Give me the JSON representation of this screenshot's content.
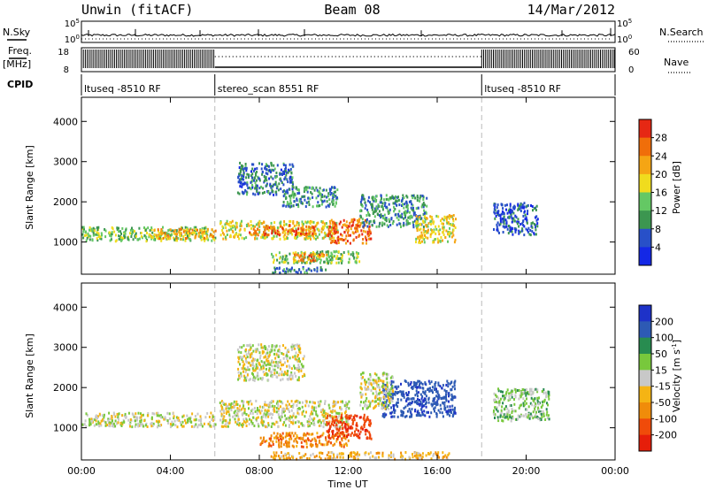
{
  "header": {
    "station": "Unwin (fitACF)",
    "beam": "Beam 08",
    "date": "14/Mar/2012"
  },
  "top_panels": {
    "nsky_label": "N.Sky",
    "nsearch_label": "N.Search",
    "noise_ticks_left": [
      "10^5",
      "10^0"
    ],
    "noise_ticks_right": [
      "10^5",
      "10^0"
    ],
    "freq_label_1": "Freq.",
    "freq_label_2": "[MHz]",
    "freq_ticks": [
      "18",
      "8"
    ],
    "nave_label": "Nave",
    "nave_ticks": [
      "60",
      "0"
    ],
    "cpid_label": "CPID",
    "cpid_segments": [
      {
        "name": "ltuseq -8510 RF",
        "start_hour": 0,
        "end_hour": 6
      },
      {
        "name": "stereo_scan 8551 RF",
        "start_hour": 6,
        "end_hour": 18
      },
      {
        "name": "ltuseq -8510 RF",
        "start_hour": 18,
        "end_hour": 24
      }
    ]
  },
  "chart_data": [
    {
      "type": "heatmap",
      "panel": "power",
      "ylabel": "Slant Range [km]",
      "xlabel": "",
      "ylim": [
        200,
        4600
      ],
      "y_ticks": [
        1000,
        2000,
        3000,
        4000
      ],
      "xlim": [
        0,
        24
      ],
      "x_ticks": [
        0,
        4,
        8,
        12,
        16,
        20,
        24
      ],
      "colorbar_label": "Power [dB]",
      "colorbar_ticks": [
        4,
        8,
        12,
        16,
        20,
        24,
        28
      ],
      "colorbar_colors": [
        "#1428e6",
        "#2850c8",
        "#3c9650",
        "#64c864",
        "#f0dc1e",
        "#f5a514",
        "#f06e0a",
        "#e62814"
      ],
      "regions": [
        {
          "x": [
            0.0,
            6.0
          ],
          "y": [
            1050,
            1400
          ],
          "value": 14
        },
        {
          "x": [
            3.0,
            6.0
          ],
          "y": [
            1100,
            1350
          ],
          "value": 22
        },
        {
          "x": [
            6.2,
            11.5
          ],
          "y": [
            1100,
            1550
          ],
          "value": 18
        },
        {
          "x": [
            7.5,
            10.5
          ],
          "y": [
            1200,
            1450
          ],
          "value": 26
        },
        {
          "x": [
            8.5,
            12.5
          ],
          "y": [
            500,
            800
          ],
          "value": 14
        },
        {
          "x": [
            9.5,
            11.0
          ],
          "y": [
            550,
            750
          ],
          "value": 24
        },
        {
          "x": [
            11.0,
            13.0
          ],
          "y": [
            1000,
            1600
          ],
          "value": 26
        },
        {
          "x": [
            12.5,
            15.5
          ],
          "y": [
            1400,
            2200
          ],
          "value": 10
        },
        {
          "x": [
            15.0,
            16.8
          ],
          "y": [
            1000,
            1700
          ],
          "value": 18
        },
        {
          "x": [
            7.0,
            9.5
          ],
          "y": [
            2200,
            3000
          ],
          "value": 8
        },
        {
          "x": [
            9.0,
            11.5
          ],
          "y": [
            1900,
            2400
          ],
          "value": 10
        },
        {
          "x": [
            8.5,
            11.0
          ],
          "y": [
            250,
            400
          ],
          "value": 8
        },
        {
          "x": [
            18.5,
            20.5
          ],
          "y": [
            1200,
            2000
          ],
          "value": 6
        }
      ]
    },
    {
      "type": "heatmap",
      "panel": "velocity",
      "ylabel": "Slant Range [km]",
      "xlabel": "Time UT",
      "ylim": [
        200,
        4600
      ],
      "y_ticks": [
        1000,
        2000,
        3000,
        4000
      ],
      "xlim": [
        0,
        24
      ],
      "x_ticks": [
        0,
        4,
        8,
        12,
        16,
        20,
        24
      ],
      "x_tick_labels": [
        "00:00",
        "04:00",
        "08:00",
        "12:00",
        "16:00",
        "20:00",
        "00:00"
      ],
      "colorbar_label": "Velocity [m s^-1]",
      "colorbar_ticks": [
        200,
        100,
        50,
        15,
        -15,
        -50,
        -100,
        -200
      ],
      "colorbar_colors": [
        "#1e32c8",
        "#2d5ab4",
        "#288c50",
        "#78c83c",
        "#c8c8c8",
        "#f5b414",
        "#f08c0a",
        "#f04b0a",
        "#e61e0a"
      ],
      "regions": [
        {
          "x": [
            0.0,
            6.0
          ],
          "y": [
            1050,
            1400
          ],
          "value": 0
        },
        {
          "x": [
            6.2,
            12.0
          ],
          "y": [
            1050,
            1700
          ],
          "value": 0
        },
        {
          "x": [
            7.0,
            10.0
          ],
          "y": [
            2200,
            3100
          ],
          "value": 0
        },
        {
          "x": [
            8.0,
            12.0
          ],
          "y": [
            550,
            900
          ],
          "value": -80
        },
        {
          "x": [
            11.0,
            13.0
          ],
          "y": [
            750,
            1350
          ],
          "value": -180
        },
        {
          "x": [
            13.5,
            16.8
          ],
          "y": [
            1300,
            2200
          ],
          "value": 180
        },
        {
          "x": [
            12.5,
            14.0
          ],
          "y": [
            1500,
            2400
          ],
          "value": 0
        },
        {
          "x": [
            8.5,
            16.5
          ],
          "y": [
            250,
            420
          ],
          "value": -40
        },
        {
          "x": [
            18.5,
            21.0
          ],
          "y": [
            1200,
            2000
          ],
          "value": 30
        }
      ]
    }
  ]
}
